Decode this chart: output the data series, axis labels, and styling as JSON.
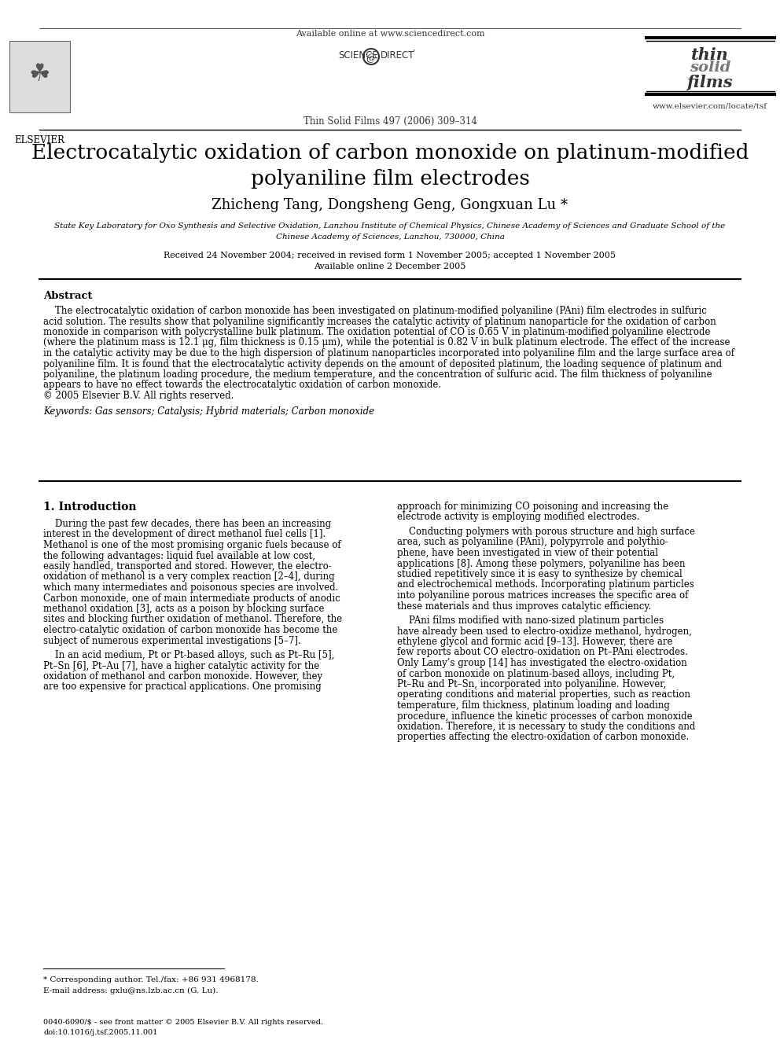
{
  "title": "Electrocatalytic oxidation of carbon monoxide on platinum-modified\npolyaniline film electrodes",
  "authors": "Zhicheng Tang, Dongsheng Geng, Gongxuan Lu *",
  "affiliation1": "State Key Laboratory for Oxo Synthesis and Selective Oxidation, Lanzhou Institute of Chemical Physics, Chinese Academy of Sciences and Graduate School of the",
  "affiliation2": "Chinese Academy of Sciences, Lanzhou, 730000, China",
  "received": "Received 24 November 2004; received in revised form 1 November 2005; accepted 1 November 2005",
  "available": "Available online 2 December 2005",
  "journal_info": "Thin Solid Films 497 (2006) 309–314",
  "available_online": "Available online at www.sciencedirect.com",
  "journal_url": "www.elsevier.com/locate/tsf",
  "abstract_title": "Abstract",
  "keywords": "Keywords: Gas sensors; Catalysis; Hybrid materials; Carbon monoxide",
  "section1_title": "1. Introduction",
  "footnote_star": "* Corresponding author. Tel./fax: +86 931 4968178.",
  "footnote_email": "E-mail address: gxlu@ns.lzb.ac.cn (G. Lu).",
  "footer_left": "0040-6090/$ - see front matter © 2005 Elsevier B.V. All rights reserved.",
  "footer_doi": "doi:10.1016/j.tsf.2005.11.001",
  "bg_color": "#ffffff",
  "abstract_lines": [
    "    The electrocatalytic oxidation of carbon monoxide has been investigated on platinum-modified polyaniline (PAni) film electrodes in sulfuric",
    "acid solution. The results show that polyaniline significantly increases the catalytic activity of platinum nanoparticle for the oxidation of carbon",
    "monoxide in comparison with polycrystalline bulk platinum. The oxidation potential of CO is 0.65 V in platinum-modified polyaniline electrode",
    "(where the platinum mass is 12.1 μg, film thickness is 0.15 μm), while the potential is 0.82 V in bulk platinum electrode. The effect of the increase",
    "in the catalytic activity may be due to the high dispersion of platinum nanoparticles incorporated into polyaniline film and the large surface area of",
    "polyaniline film. It is found that the electrocatalytic activity depends on the amount of deposited platinum, the loading sequence of platinum and",
    "polyaniline, the platinum loading procedure, the medium temperature, and the concentration of sulfuric acid. The film thickness of polyaniline",
    "appears to have no effect towards the electrocatalytic oxidation of carbon monoxide.",
    "© 2005 Elsevier B.V. All rights reserved."
  ],
  "col1_p1_lines": [
    "    During the past few decades, there has been an increasing",
    "interest in the development of direct methanol fuel cells [1].",
    "Methanol is one of the most promising organic fuels because of",
    "the following advantages: liquid fuel available at low cost,",
    "easily handled, transported and stored. However, the electro-",
    "oxidation of methanol is a very complex reaction [2–4], during",
    "which many intermediates and poisonous species are involved.",
    "Carbon monoxide, one of main intermediate products of anodic",
    "methanol oxidation [3], acts as a poison by blocking surface",
    "sites and blocking further oxidation of methanol. Therefore, the",
    "electro-catalytic oxidation of carbon monoxide has become the",
    "subject of numerous experimental investigations [5–7]."
  ],
  "col1_p2_lines": [
    "    In an acid medium, Pt or Pt-based alloys, such as Pt–Ru [5],",
    "Pt–Sn [6], Pt–Au [7], have a higher catalytic activity for the",
    "oxidation of methanol and carbon monoxide. However, they",
    "are too expensive for practical applications. One promising"
  ],
  "col2_p1_lines": [
    "approach for minimizing CO poisoning and increasing the",
    "electrode activity is employing modified electrodes."
  ],
  "col2_p2_lines": [
    "    Conducting polymers with porous structure and high surface",
    "area, such as polyaniline (PAni), polypyrrole and polythio-",
    "phene, have been investigated in view of their potential",
    "applications [8]. Among these polymers, polyaniline has been",
    "studied repetitively since it is easy to synthesize by chemical",
    "and electrochemical methods. Incorporating platinum particles",
    "into polyaniline porous matrices increases the specific area of",
    "these materials and thus improves catalytic efficiency."
  ],
  "col2_p3_lines": [
    "    PAni films modified with nano-sized platinum particles",
    "have already been used to electro-oxidize methanol, hydrogen,",
    "ethylene glycol and formic acid [9–13]. However, there are",
    "few reports about CO electro-oxidation on Pt–PAni electrodes.",
    "Only Lamy’s group [14] has investigated the electro-oxidation",
    "of carbon monoxide on platinum-based alloys, including Pt,",
    "Pt–Ru and Pt–Sn, incorporated into polyaniline. However,",
    "operating conditions and material properties, such as reaction",
    "temperature, film thickness, platinum loading and loading",
    "procedure, influence the kinetic processes of carbon monoxide",
    "oxidation. Therefore, it is necessary to study the conditions and",
    "properties affecting the electro-oxidation of carbon monoxide."
  ]
}
